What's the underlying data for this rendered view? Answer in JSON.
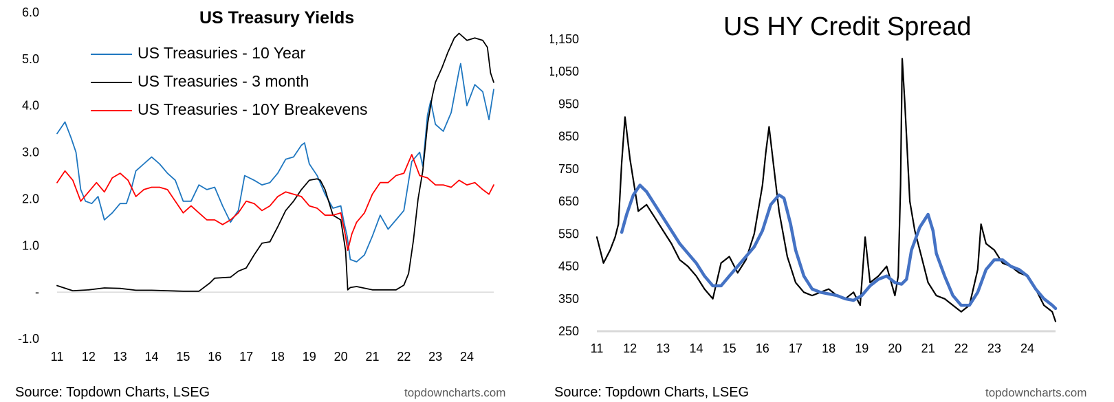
{
  "chart_data": [
    {
      "type": "line",
      "title": "US Treasury Yields",
      "xlabel": "",
      "ylabel": "",
      "x_tick_labels": [
        "11",
        "12",
        "13",
        "14",
        "15",
        "16",
        "17",
        "18",
        "19",
        "20",
        "21",
        "22",
        "23",
        "24"
      ],
      "y_tick_labels": [
        "6.0",
        "5.0",
        "4.0",
        "3.0",
        "2.0",
        "1.0",
        "-",
        "-1.0"
      ],
      "y_tick_values": [
        6,
        5,
        4,
        3,
        2,
        1,
        0,
        -1
      ],
      "xlim": [
        2011.0,
        2024.85
      ],
      "ylim": [
        -1.0,
        6.0
      ],
      "grid": false,
      "legend": "top-left",
      "source": "Source: Topdown Charts, LSEG",
      "watermark": "topdowncharts.com",
      "series": [
        {
          "name": "US Treasuries - 10 Year",
          "color": "#1f77c0",
          "x": [
            2011.0,
            2011.25,
            2011.45,
            2011.6,
            2011.75,
            2011.9,
            2012.1,
            2012.3,
            2012.5,
            2012.75,
            2013.0,
            2013.2,
            2013.35,
            2013.5,
            2013.75,
            2014.0,
            2014.25,
            2014.5,
            2014.75,
            2015.0,
            2015.25,
            2015.5,
            2015.75,
            2016.0,
            2016.25,
            2016.5,
            2016.75,
            2016.95,
            2017.25,
            2017.5,
            2017.75,
            2018.0,
            2018.25,
            2018.5,
            2018.75,
            2018.85,
            2019.0,
            2019.25,
            2019.5,
            2019.75,
            2020.0,
            2020.1,
            2020.2,
            2020.3,
            2020.5,
            2020.75,
            2021.0,
            2021.25,
            2021.5,
            2021.75,
            2022.0,
            2022.25,
            2022.5,
            2022.6,
            2022.75,
            2022.85,
            2023.0,
            2023.25,
            2023.5,
            2023.75,
            2023.8,
            2024.0,
            2024.25,
            2024.5,
            2024.7,
            2024.85
          ],
          "values": [
            3.4,
            3.65,
            3.3,
            3.0,
            2.2,
            1.95,
            1.9,
            2.05,
            1.55,
            1.7,
            1.9,
            1.9,
            2.2,
            2.6,
            2.75,
            2.9,
            2.75,
            2.55,
            2.4,
            1.95,
            1.95,
            2.3,
            2.2,
            2.25,
            1.85,
            1.5,
            1.75,
            2.5,
            2.4,
            2.3,
            2.35,
            2.55,
            2.85,
            2.9,
            3.15,
            3.2,
            2.75,
            2.5,
            2.1,
            1.8,
            1.85,
            1.5,
            1.2,
            0.7,
            0.65,
            0.8,
            1.2,
            1.65,
            1.35,
            1.55,
            1.75,
            2.8,
            3.0,
            2.7,
            3.8,
            4.1,
            3.6,
            3.45,
            3.85,
            4.75,
            4.9,
            4.0,
            4.45,
            4.3,
            3.7,
            4.35
          ]
        },
        {
          "name": "US Treasuries - 3 month",
          "color": "#000000",
          "x": [
            2011.0,
            2011.5,
            2012.0,
            2012.5,
            2013.0,
            2013.5,
            2014.0,
            2014.5,
            2015.0,
            2015.5,
            2015.85,
            2016.0,
            2016.5,
            2016.75,
            2017.0,
            2017.25,
            2017.5,
            2017.75,
            2018.0,
            2018.25,
            2018.5,
            2018.75,
            2019.0,
            2019.25,
            2019.35,
            2019.5,
            2019.75,
            2020.0,
            2020.15,
            2020.22,
            2020.3,
            2020.5,
            2021.0,
            2021.5,
            2021.75,
            2022.0,
            2022.15,
            2022.3,
            2022.45,
            2022.6,
            2022.75,
            2022.9,
            2023.0,
            2023.2,
            2023.4,
            2023.6,
            2023.75,
            2024.0,
            2024.25,
            2024.5,
            2024.65,
            2024.75,
            2024.85
          ],
          "values": [
            0.14,
            0.03,
            0.05,
            0.09,
            0.08,
            0.04,
            0.04,
            0.03,
            0.02,
            0.02,
            0.2,
            0.3,
            0.32,
            0.45,
            0.52,
            0.8,
            1.05,
            1.08,
            1.4,
            1.75,
            1.95,
            2.2,
            2.4,
            2.43,
            2.4,
            2.2,
            1.65,
            1.55,
            0.9,
            0.05,
            0.1,
            0.12,
            0.05,
            0.05,
            0.05,
            0.15,
            0.4,
            1.1,
            2.0,
            2.6,
            3.6,
            4.2,
            4.5,
            4.8,
            5.15,
            5.45,
            5.55,
            5.4,
            5.45,
            5.4,
            5.25,
            4.7,
            4.5
          ]
        },
        {
          "name": "US Treasuries - 10Y Breakevens",
          "color": "#ff0000",
          "x": [
            2011.0,
            2011.25,
            2011.5,
            2011.75,
            2012.0,
            2012.25,
            2012.5,
            2012.75,
            2013.0,
            2013.25,
            2013.5,
            2013.75,
            2014.0,
            2014.25,
            2014.5,
            2014.75,
            2015.0,
            2015.25,
            2015.5,
            2015.75,
            2016.0,
            2016.25,
            2016.5,
            2016.75,
            2017.0,
            2017.25,
            2017.5,
            2017.75,
            2018.0,
            2018.25,
            2018.5,
            2018.75,
            2019.0,
            2019.25,
            2019.5,
            2019.75,
            2020.0,
            2020.15,
            2020.22,
            2020.35,
            2020.5,
            2020.75,
            2021.0,
            2021.25,
            2021.5,
            2021.75,
            2022.0,
            2022.25,
            2022.5,
            2022.75,
            2023.0,
            2023.25,
            2023.5,
            2023.75,
            2024.0,
            2024.25,
            2024.5,
            2024.7,
            2024.85
          ],
          "values": [
            2.35,
            2.6,
            2.4,
            1.95,
            2.15,
            2.35,
            2.15,
            2.45,
            2.55,
            2.4,
            2.05,
            2.2,
            2.25,
            2.25,
            2.2,
            1.95,
            1.7,
            1.85,
            1.7,
            1.55,
            1.55,
            1.45,
            1.55,
            1.7,
            1.95,
            1.9,
            1.75,
            1.85,
            2.05,
            2.15,
            2.1,
            2.05,
            1.85,
            1.8,
            1.65,
            1.65,
            1.7,
            1.2,
            0.9,
            1.25,
            1.5,
            1.7,
            2.1,
            2.35,
            2.35,
            2.5,
            2.55,
            2.95,
            2.5,
            2.45,
            2.3,
            2.3,
            2.25,
            2.4,
            2.3,
            2.35,
            2.2,
            2.1,
            2.3
          ]
        }
      ]
    },
    {
      "type": "line",
      "title": "US HY Credit Spread",
      "xlabel": "",
      "ylabel": "",
      "x_tick_labels": [
        "11",
        "12",
        "13",
        "14",
        "15",
        "16",
        "17",
        "18",
        "19",
        "20",
        "21",
        "22",
        "23",
        "24"
      ],
      "y_tick_labels": [
        "1,150",
        "1,050",
        "950",
        "850",
        "750",
        "650",
        "550",
        "450",
        "350",
        "250"
      ],
      "y_tick_values": [
        1150,
        1050,
        950,
        850,
        750,
        650,
        550,
        450,
        350,
        250
      ],
      "xlim": [
        2011.0,
        2024.85
      ],
      "ylim": [
        250,
        1150
      ],
      "grid": false,
      "legend": "none",
      "source": "Source: Topdown Charts, LSEG",
      "watermark": "topdowncharts.com",
      "series": [
        {
          "color": "#000000",
          "x": [
            2011.0,
            2011.2,
            2011.4,
            2011.55,
            2011.65,
            2011.75,
            2011.85,
            2012.0,
            2012.25,
            2012.5,
            2012.75,
            2013.0,
            2013.25,
            2013.5,
            2013.75,
            2014.0,
            2014.25,
            2014.5,
            2014.75,
            2015.0,
            2015.25,
            2015.5,
            2015.75,
            2016.0,
            2016.1,
            2016.2,
            2016.35,
            2016.5,
            2016.75,
            2017.0,
            2017.25,
            2017.5,
            2017.75,
            2018.0,
            2018.25,
            2018.5,
            2018.75,
            2018.95,
            2019.1,
            2019.25,
            2019.5,
            2019.75,
            2020.0,
            2020.1,
            2020.17,
            2020.22,
            2020.3,
            2020.45,
            2020.6,
            2020.8,
            2021.0,
            2021.25,
            2021.5,
            2021.75,
            2022.0,
            2022.25,
            2022.5,
            2022.6,
            2022.75,
            2023.0,
            2023.25,
            2023.5,
            2023.75,
            2024.0,
            2024.25,
            2024.5,
            2024.75,
            2024.85
          ],
          "values": [
            540,
            460,
            500,
            540,
            580,
            770,
            910,
            780,
            620,
            640,
            600,
            560,
            520,
            470,
            450,
            420,
            380,
            350,
            460,
            480,
            430,
            470,
            550,
            700,
            800,
            880,
            750,
            620,
            480,
            400,
            370,
            360,
            370,
            380,
            360,
            350,
            370,
            330,
            540,
            400,
            420,
            450,
            360,
            420,
            700,
            1090,
            950,
            650,
            560,
            480,
            400,
            360,
            350,
            330,
            310,
            330,
            440,
            580,
            520,
            500,
            460,
            450,
            430,
            420,
            380,
            330,
            310,
            280
          ]
        },
        {
          "color": "#4472c4",
          "x": [
            2011.75,
            2011.9,
            2012.1,
            2012.3,
            2012.5,
            2012.75,
            2013.0,
            2013.25,
            2013.5,
            2013.75,
            2014.0,
            2014.25,
            2014.5,
            2014.75,
            2015.0,
            2015.25,
            2015.5,
            2015.75,
            2016.0,
            2016.25,
            2016.5,
            2016.65,
            2016.85,
            2017.0,
            2017.25,
            2017.5,
            2017.75,
            2018.0,
            2018.25,
            2018.5,
            2018.75,
            2019.0,
            2019.25,
            2019.5,
            2019.75,
            2020.0,
            2020.2,
            2020.35,
            2020.5,
            2020.75,
            2021.0,
            2021.15,
            2021.25,
            2021.5,
            2021.75,
            2022.0,
            2022.25,
            2022.5,
            2022.75,
            2023.0,
            2023.25,
            2023.5,
            2023.75,
            2024.0,
            2024.25,
            2024.5,
            2024.75,
            2024.85
          ],
          "values": [
            555,
            610,
            670,
            700,
            680,
            640,
            600,
            560,
            520,
            490,
            460,
            420,
            390,
            390,
            420,
            450,
            480,
            510,
            560,
            640,
            670,
            660,
            580,
            500,
            420,
            380,
            370,
            365,
            360,
            350,
            345,
            360,
            390,
            410,
            420,
            400,
            395,
            410,
            500,
            570,
            610,
            560,
            490,
            420,
            360,
            330,
            330,
            370,
            440,
            470,
            470,
            450,
            440,
            420,
            380,
            350,
            330,
            320
          ]
        }
      ]
    }
  ]
}
